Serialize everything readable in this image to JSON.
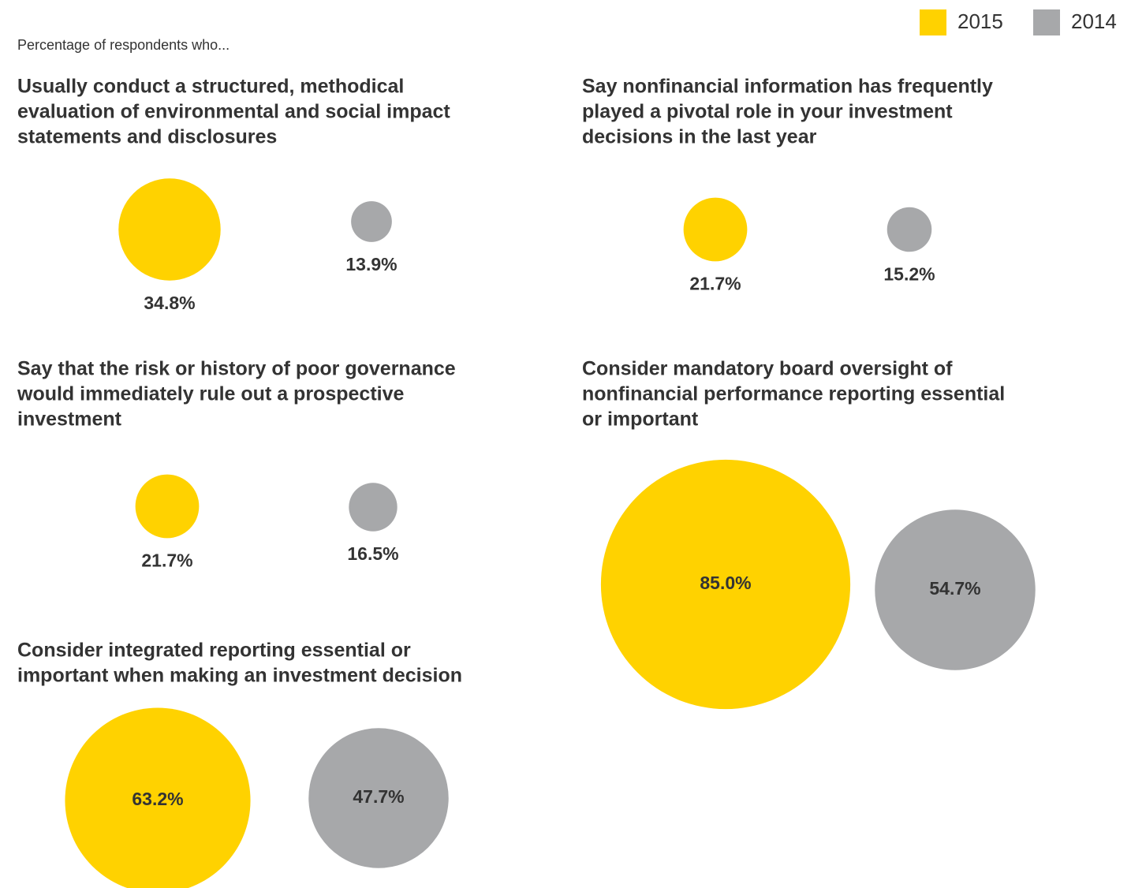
{
  "chart_data": {
    "type": "bubble",
    "subtitle": "Percentage of respondents who...",
    "series": [
      {
        "name": "2015",
        "color": "#ffd200"
      },
      {
        "name": "2014",
        "color": "#a7a8aa"
      }
    ],
    "panels": [
      {
        "title": [
          "Usually conduct a structured, methodical",
          "evaluation of environmental and social impact",
          "statements and disclosures"
        ],
        "values": [
          34.8,
          13.9
        ],
        "value_labels": [
          "34.8%",
          "13.9%"
        ]
      },
      {
        "title": [
          "Say nonfinancial information has frequently",
          "played a pivotal role in your investment",
          "decisions in the last year"
        ],
        "values": [
          21.7,
          15.2
        ],
        "value_labels": [
          "21.7%",
          "15.2%"
        ]
      },
      {
        "title": [
          "Say that the risk or history of poor governance",
          "would immediately rule out a prospective",
          "investment"
        ],
        "values": [
          21.7,
          16.5
        ],
        "value_labels": [
          "21.7%",
          "16.5%"
        ]
      },
      {
        "title": [
          "Consider mandatory board oversight of",
          "nonfinancial performance reporting essential",
          "or important"
        ],
        "values": [
          85.0,
          54.7
        ],
        "value_labels": [
          "85.0%",
          "54.7%"
        ]
      },
      {
        "title": [
          "Consider integrated reporting essential or",
          "important when making an investment decision"
        ],
        "values": [
          63.2,
          47.7
        ],
        "value_labels": [
          "63.2%",
          "47.7%"
        ]
      }
    ]
  }
}
